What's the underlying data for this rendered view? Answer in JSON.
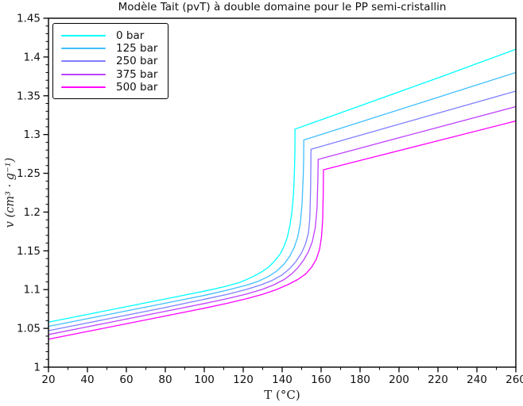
{
  "chart_data": {
    "type": "line",
    "title": "Modèle Tait (pvT) à double domaine pour le PP semi-cristallin",
    "xlabel": "T (°C)",
    "ylabel": "v (cm³ · g⁻¹)",
    "xlim": [
      20,
      260
    ],
    "ylim": [
      1.0,
      1.45
    ],
    "grid": false,
    "x_tick_values": [
      20,
      40,
      60,
      80,
      100,
      120,
      140,
      160,
      180,
      200,
      220,
      240,
      260
    ],
    "x_tick_labels": [
      "20",
      "40",
      "60",
      "80",
      "100",
      "120",
      "140",
      "160",
      "180",
      "200",
      "220",
      "240",
      "260"
    ],
    "x_minor_step": 10,
    "y_tick_values": [
      1.0,
      1.05,
      1.1,
      1.15,
      1.2,
      1.25,
      1.3,
      1.35,
      1.4,
      1.45
    ],
    "y_tick_labels": [
      "1",
      "1.05",
      "1.1",
      "1.15",
      "1.2",
      "1.25",
      "1.3",
      "1.35",
      "1.4",
      "1.45"
    ],
    "y_minor_step": 0.01,
    "legend_position": "upper-left",
    "axis_color": "#000000",
    "series": [
      {
        "name": "0 bar",
        "color": "#00ffff",
        "points": [
          [
            20,
            1.058
          ],
          [
            40,
            1.068
          ],
          [
            60,
            1.078
          ],
          [
            80,
            1.088
          ],
          [
            100,
            1.098
          ],
          [
            110,
            1.1035
          ],
          [
            118,
            1.109
          ],
          [
            124,
            1.1155
          ],
          [
            129,
            1.122
          ],
          [
            133,
            1.129
          ],
          [
            136,
            1.1365
          ],
          [
            139,
            1.146
          ],
          [
            141,
            1.156
          ],
          [
            142.7,
            1.168
          ],
          [
            144,
            1.183
          ],
          [
            145,
            1.2
          ],
          [
            145.8,
            1.222
          ],
          [
            146.3,
            1.252
          ],
          [
            146.55,
            1.278
          ],
          [
            146.6,
            1.307
          ],
          [
            150,
            1.31
          ],
          [
            180,
            1.337
          ],
          [
            220,
            1.373
          ],
          [
            260,
            1.41
          ]
        ]
      },
      {
        "name": "125 bar",
        "color": "#40bfff",
        "points": [
          [
            20,
            1.0525
          ],
          [
            40,
            1.0625
          ],
          [
            60,
            1.0725
          ],
          [
            80,
            1.0825
          ],
          [
            100,
            1.0925
          ],
          [
            112,
            1.0995
          ],
          [
            122,
            1.106
          ],
          [
            128,
            1.111
          ],
          [
            133,
            1.117
          ],
          [
            137,
            1.1235
          ],
          [
            141,
            1.133
          ],
          [
            144,
            1.1435
          ],
          [
            146.3,
            1.155
          ],
          [
            148,
            1.168
          ],
          [
            149.3,
            1.185
          ],
          [
            150.2,
            1.21
          ],
          [
            150.8,
            1.245
          ],
          [
            151.05,
            1.27
          ],
          [
            151.1,
            1.293
          ],
          [
            160,
            1.3
          ],
          [
            200,
            1.332
          ],
          [
            260,
            1.38
          ]
        ]
      },
      {
        "name": "250 bar",
        "color": "#8080ff",
        "points": [
          [
            20,
            1.047
          ],
          [
            40,
            1.057
          ],
          [
            60,
            1.067
          ],
          [
            80,
            1.077
          ],
          [
            100,
            1.0875
          ],
          [
            112,
            1.094
          ],
          [
            122,
            1.1005
          ],
          [
            129,
            1.106
          ],
          [
            135,
            1.112
          ],
          [
            140,
            1.119
          ],
          [
            144,
            1.1275
          ],
          [
            147,
            1.136
          ],
          [
            150,
            1.1475
          ],
          [
            152,
            1.159
          ],
          [
            153.5,
            1.173
          ],
          [
            154.2,
            1.192
          ],
          [
            154.6,
            1.23
          ],
          [
            154.75,
            1.258
          ],
          [
            154.8,
            1.281
          ],
          [
            160,
            1.2847
          ],
          [
            200,
            1.3133
          ],
          [
            260,
            1.356
          ]
        ]
      },
      {
        "name": "375 bar",
        "color": "#bf40ff",
        "points": [
          [
            20,
            1.042
          ],
          [
            40,
            1.052
          ],
          [
            60,
            1.062
          ],
          [
            80,
            1.072
          ],
          [
            100,
            1.082
          ],
          [
            112,
            1.0885
          ],
          [
            122,
            1.0945
          ],
          [
            130,
            1.1005
          ],
          [
            136,
            1.1065
          ],
          [
            141,
            1.113
          ],
          [
            145,
            1.1205
          ],
          [
            148,
            1.128
          ],
          [
            151,
            1.138
          ],
          [
            153.5,
            1.149
          ],
          [
            155.5,
            1.162
          ],
          [
            157,
            1.18
          ],
          [
            157.9,
            1.205
          ],
          [
            158.3,
            1.24
          ],
          [
            158.5,
            1.268
          ],
          [
            180,
            1.2824
          ],
          [
            220,
            1.3093
          ],
          [
            260,
            1.336
          ]
        ]
      },
      {
        "name": "500 bar",
        "color": "#ff00ff",
        "points": [
          [
            20,
            1.036
          ],
          [
            40,
            1.046
          ],
          [
            60,
            1.056
          ],
          [
            80,
            1.066
          ],
          [
            100,
            1.076
          ],
          [
            112,
            1.0825
          ],
          [
            122,
            1.0885
          ],
          [
            130,
            1.094
          ],
          [
            137,
            1.1
          ],
          [
            143,
            1.1065
          ],
          [
            148,
            1.113
          ],
          [
            152,
            1.12
          ],
          [
            155,
            1.1285
          ],
          [
            157.5,
            1.139
          ],
          [
            159.2,
            1.152
          ],
          [
            160.2,
            1.168
          ],
          [
            160.8,
            1.19
          ],
          [
            161.1,
            1.225
          ],
          [
            161.2,
            1.2545
          ],
          [
            180,
            1.2665
          ],
          [
            220,
            1.292
          ],
          [
            260,
            1.3175
          ]
        ]
      }
    ]
  }
}
